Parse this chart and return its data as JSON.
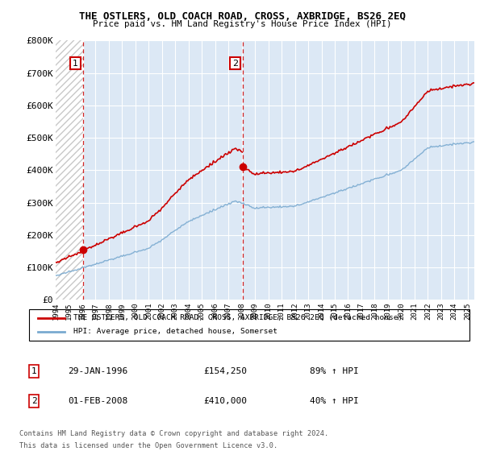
{
  "title": "THE OSTLERS, OLD COACH ROAD, CROSS, AXBRIDGE, BS26 2EQ",
  "subtitle": "Price paid vs. HM Land Registry's House Price Index (HPI)",
  "legend_line1": "THE OSTLERS, OLD COACH ROAD, CROSS, AXBRIDGE, BS26 2EQ (detached house)",
  "legend_line2": "HPI: Average price, detached house, Somerset",
  "footnote": "Contains HM Land Registry data © Crown copyright and database right 2024.\nThis data is licensed under the Open Government Licence v3.0.",
  "annotation1_date": "29-JAN-1996",
  "annotation1_price": "£154,250",
  "annotation1_hpi": "89% ↑ HPI",
  "annotation2_date": "01-FEB-2008",
  "annotation2_price": "£410,000",
  "annotation2_hpi": "40% ↑ HPI",
  "price_color": "#cc0000",
  "hpi_color": "#7aaad0",
  "ylim": [
    0,
    800000
  ],
  "yticks": [
    0,
    100000,
    200000,
    300000,
    400000,
    500000,
    600000,
    700000,
    800000
  ],
  "ytick_labels": [
    "£0",
    "£100K",
    "£200K",
    "£300K",
    "£400K",
    "£500K",
    "£600K",
    "£700K",
    "£800K"
  ],
  "sale1_x": 1996.08,
  "sale1_y": 154250,
  "sale2_x": 2008.09,
  "sale2_y": 410000,
  "xmin": 1994.0,
  "xmax": 2025.5,
  "bg_color": "#dce8f5",
  "hatch_color": "#c8c8c8",
  "grid_color": "#ffffff"
}
